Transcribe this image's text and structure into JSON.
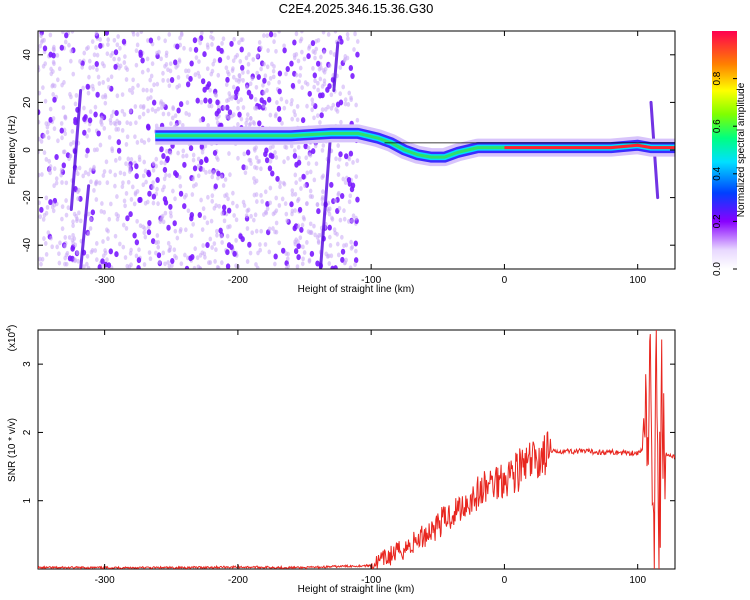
{
  "title": "C2E4.2025.346.15.36.G30",
  "chart_data": [
    {
      "type": "heatmap",
      "xlabel": "Height of straight line (km)",
      "ylabel": "Frequency (Hz)",
      "xlim": [
        -350,
        128
      ],
      "ylim": [
        -50,
        50
      ],
      "xticks": [
        -300,
        -200,
        -100,
        0,
        100
      ],
      "yticks": [
        -40,
        -20,
        0,
        20,
        40
      ],
      "colorbar": {
        "label": "Normalized spectral amplitude",
        "range": [
          0,
          1
        ],
        "ticks": [
          "0.0",
          "0.2",
          "0.4",
          "0.6",
          "0.8"
        ]
      },
      "ridge": [
        {
          "x": -262,
          "y": 6
        },
        {
          "x": -240,
          "y": 6
        },
        {
          "x": -200,
          "y": 6
        },
        {
          "x": -160,
          "y": 6
        },
        {
          "x": -130,
          "y": 7
        },
        {
          "x": -110,
          "y": 7
        },
        {
          "x": -95,
          "y": 5
        },
        {
          "x": -85,
          "y": 3
        },
        {
          "x": -75,
          "y": 0
        },
        {
          "x": -65,
          "y": -2
        },
        {
          "x": -55,
          "y": -3
        },
        {
          "x": -45,
          "y": -3
        },
        {
          "x": -35,
          "y": -1
        },
        {
          "x": -20,
          "y": 1
        },
        {
          "x": 0,
          "y": 1
        },
        {
          "x": 40,
          "y": 1
        },
        {
          "x": 80,
          "y": 1
        },
        {
          "x": 100,
          "y": 2
        },
        {
          "x": 110,
          "y": 1
        },
        {
          "x": 128,
          "y": 1
        }
      ],
      "grid": false
    },
    {
      "type": "line",
      "xlabel": "Height of straight line (km)",
      "ylabel": "SNR (10 * v/v)",
      "y_multiplier": "(x10^4)",
      "y_multiplier_base": "(x10",
      "y_multiplier_exp": "4",
      "xlim": [
        -350,
        128
      ],
      "ylim": [
        0,
        3.5
      ],
      "xticks": [
        -300,
        -200,
        -100,
        0,
        100
      ],
      "yticks": [
        1,
        2,
        3
      ],
      "series": [
        {
          "color": "#e8261f",
          "points": [
            [
              -350,
              0.02
            ],
            [
              -250,
              0.02
            ],
            [
              -200,
              0.03
            ],
            [
              -150,
              0.02
            ],
            [
              -120,
              0.04
            ],
            [
              -100,
              0.05
            ],
            [
              -90,
              0.15
            ],
            [
              -80,
              0.25
            ],
            [
              -70,
              0.35
            ],
            [
              -60,
              0.5
            ],
            [
              -50,
              0.65
            ],
            [
              -40,
              0.8
            ],
            [
              -30,
              0.95
            ],
            [
              -20,
              1.1
            ],
            [
              -10,
              1.25
            ],
            [
              0,
              1.35
            ],
            [
              10,
              1.45
            ],
            [
              20,
              1.55
            ],
            [
              30,
              1.68
            ],
            [
              40,
              1.73
            ],
            [
              60,
              1.72
            ],
            [
              80,
              1.71
            ],
            [
              100,
              1.7
            ],
            [
              105,
              1.75
            ],
            [
              108,
              2.6
            ],
            [
              110,
              3.5
            ],
            [
              112,
              0.2
            ],
            [
              114,
              2.9
            ],
            [
              116,
              0.3
            ],
            [
              118,
              2.5
            ],
            [
              120,
              1.68
            ],
            [
              128,
              1.65
            ]
          ]
        }
      ],
      "grid": false
    }
  ]
}
